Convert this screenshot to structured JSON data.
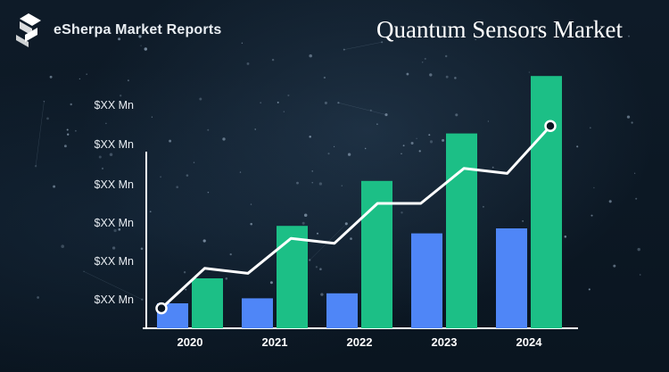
{
  "brand": {
    "name": "eSherpa Market Reports",
    "logo_icon": "sherpa-s-logo-icon"
  },
  "title": "Quantum Sensors Market",
  "colors": {
    "blue": "#4f86f7",
    "green": "#1cbf86",
    "line": "#ffffff",
    "background": "#0b1622"
  },
  "chart_data": {
    "type": "bar",
    "title": "Quantum Sensors Market",
    "categories": [
      "2020",
      "2021",
      "2022",
      "2023",
      "2024"
    ],
    "y_tick_labels": [
      "$XX Mn",
      "$XX Mn",
      "$XX Mn",
      "$XX Mn",
      "$XX Mn",
      "$XX Mn"
    ],
    "series": [
      {
        "values": [
          1.0,
          1.2,
          1.4,
          3.8,
          4.0
        ]
      },
      {
        "values": [
          2.0,
          4.1,
          5.9,
          7.8,
          10.1
        ]
      }
    ],
    "trend_line": [
      0.8,
      2.4,
      2.2,
      3.6,
      3.4,
      5.0,
      5.0,
      6.4,
      6.2,
      8.1
    ],
    "ylim": [
      0,
      11
    ],
    "grid": false,
    "legend": "none"
  }
}
